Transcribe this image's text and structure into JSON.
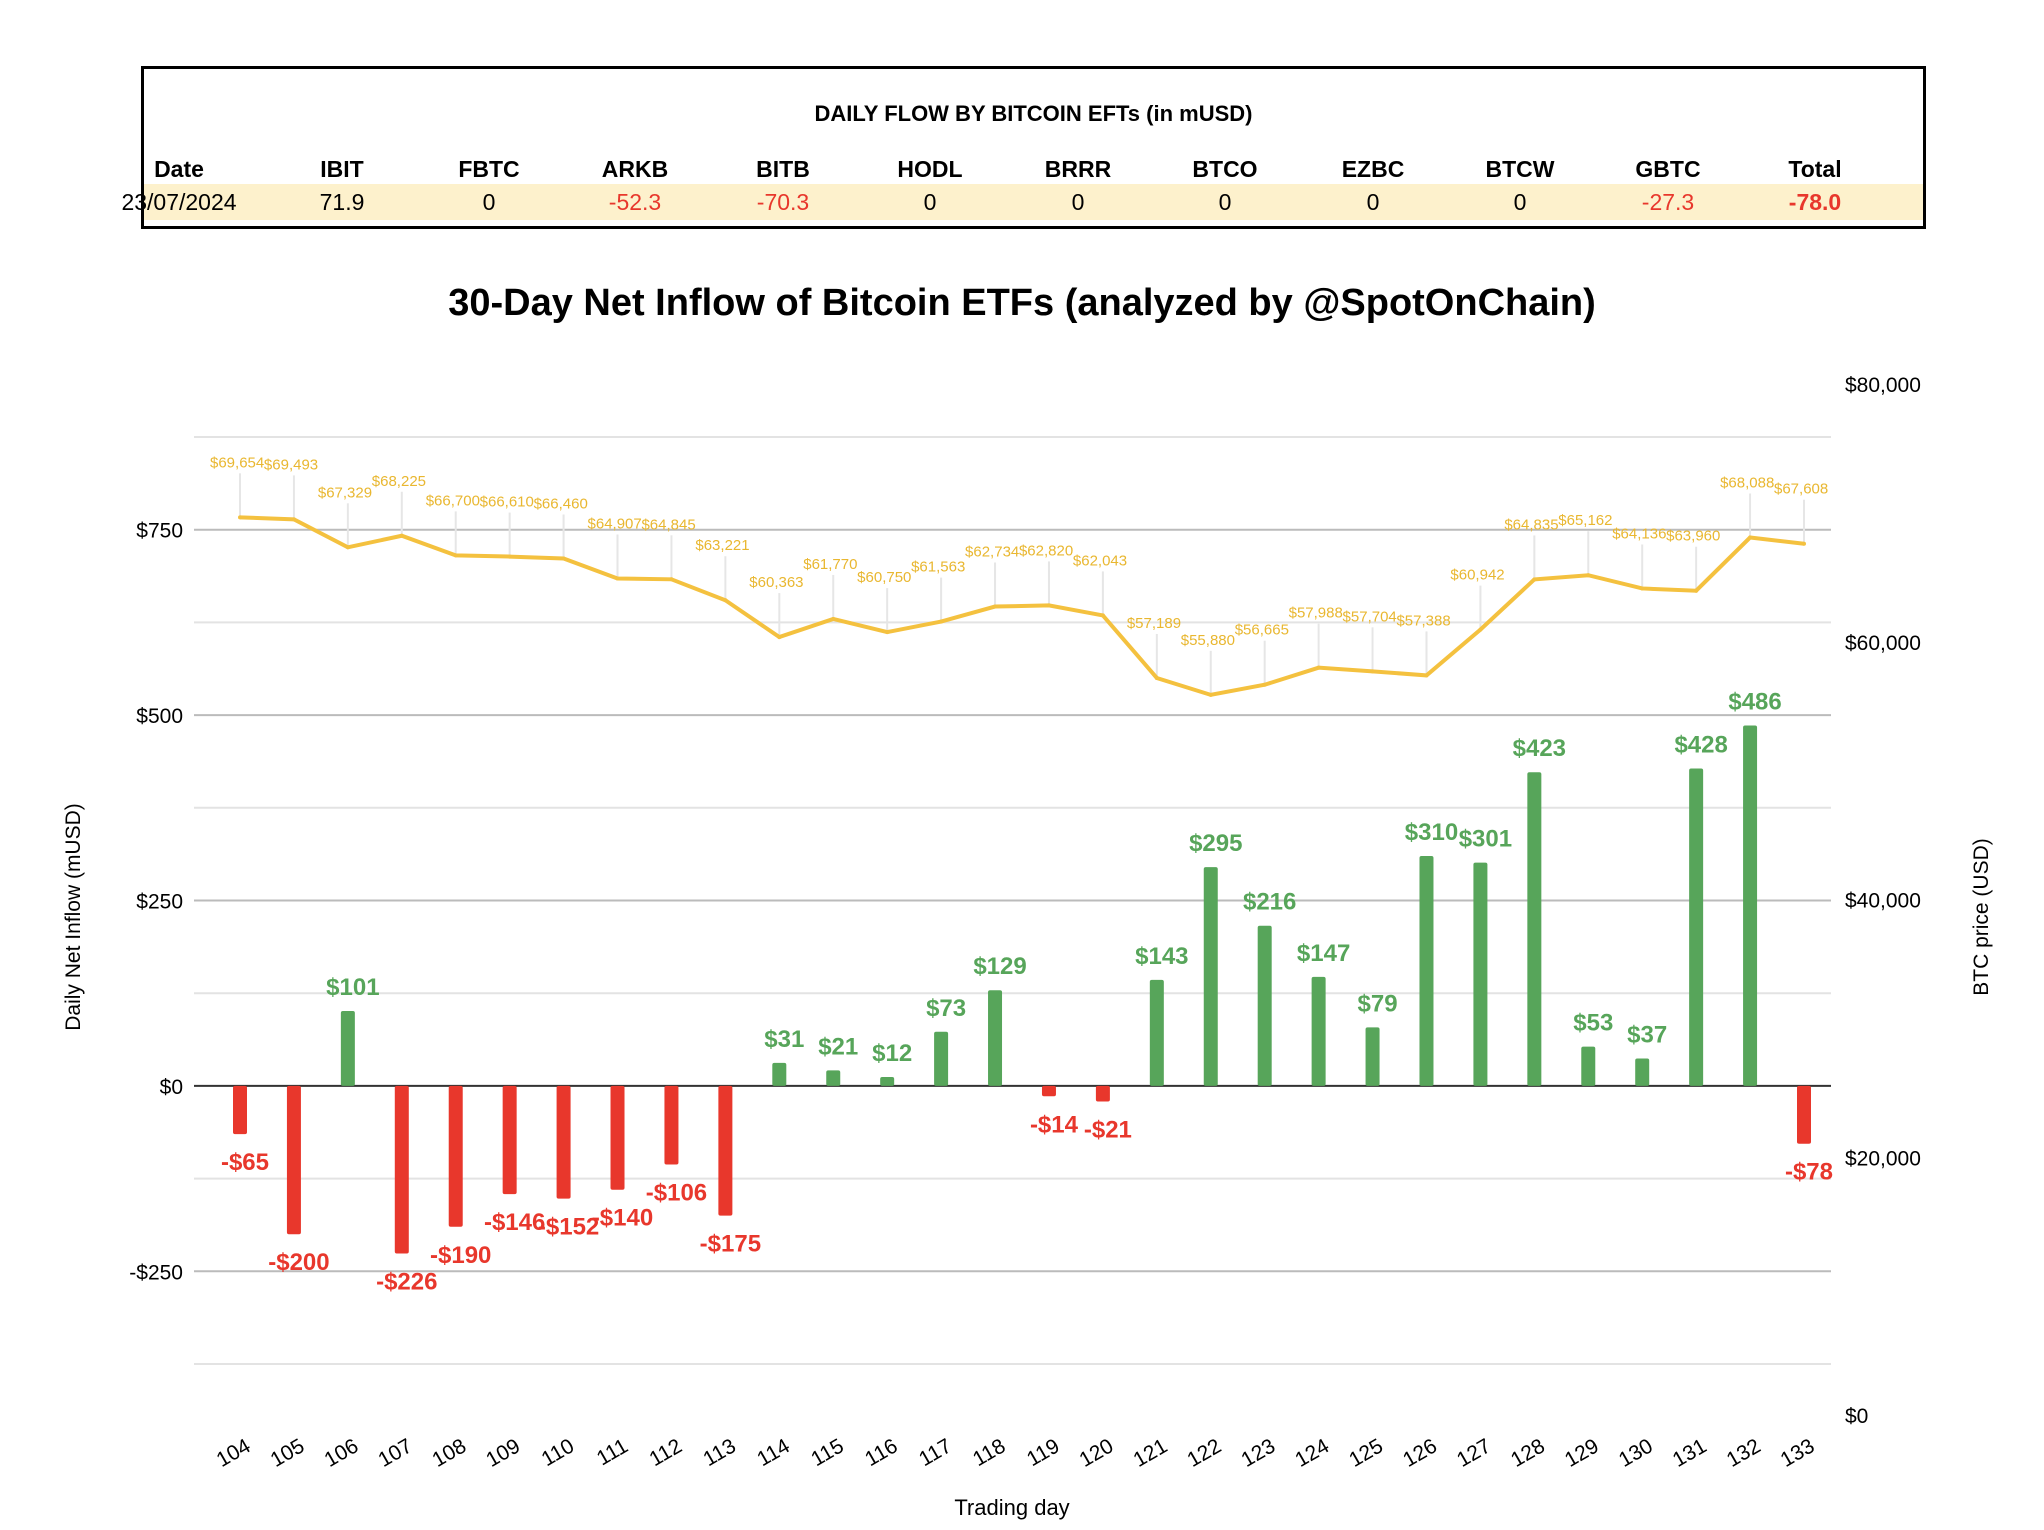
{
  "table": {
    "title": "DAILY FLOW BY BITCOIN EFTs (in mUSD)",
    "headers": [
      "Date",
      "IBIT",
      "FBTC",
      "ARKB",
      "BITB",
      "HODL",
      "BRRR",
      "BTCO",
      "EZBC",
      "BTCW",
      "GBTC",
      "Total"
    ],
    "row": [
      "23/07/2024",
      "71.9",
      "0",
      "-52.3",
      "-70.3",
      "0",
      "0",
      "0",
      "0",
      "0",
      "-27.3",
      "-78.0"
    ]
  },
  "chart_data": {
    "type": "bar+line",
    "title": "30-Day Net Inflow of Bitcoin ETFs (analyzed by @SpotOnChain)",
    "xlabel": "Trading day",
    "ylabel": "Daily Net Inflow (mUSD)",
    "y2label": "BTC price (USD)",
    "categories": [
      "104",
      "105",
      "106",
      "107",
      "108",
      "109",
      "110",
      "111",
      "112",
      "113",
      "114",
      "115",
      "116",
      "117",
      "118",
      "119",
      "120",
      "121",
      "122",
      "123",
      "124",
      "125",
      "126",
      "127",
      "128",
      "129",
      "130",
      "131",
      "132",
      "133"
    ],
    "series": [
      {
        "name": "Daily Net Inflow",
        "type": "bar",
        "axis": "left",
        "values": [
          -65,
          -200,
          101,
          -226,
          -190,
          -146,
          -152,
          -140,
          -106,
          -175,
          31,
          21,
          12,
          73,
          129,
          -14,
          -21,
          143,
          295,
          216,
          147,
          79,
          310,
          301,
          423,
          53,
          37,
          428,
          486,
          -78
        ]
      },
      {
        "name": "BTC price",
        "type": "line",
        "axis": "right",
        "values": [
          69654,
          69493,
          67329,
          68225,
          66700,
          66610,
          66460,
          64907,
          64845,
          63221,
          60363,
          61770,
          60750,
          61563,
          62734,
          62820,
          62043,
          57189,
          55880,
          56665,
          57988,
          57704,
          57388,
          60942,
          64835,
          65162,
          64136,
          63960,
          68088,
          67608
        ]
      }
    ],
    "ylim": [
      -375,
      875
    ],
    "yticks": [
      -250,
      0,
      250,
      500,
      750
    ],
    "ytick_labels": [
      "-$250",
      "$0",
      "$250",
      "$500",
      "$750"
    ],
    "y2lim": [
      0,
      80000
    ],
    "y2ticks": [
      0,
      20000,
      40000,
      60000,
      80000
    ],
    "y2tick_labels": [
      "$0",
      "$20,000",
      "$40,000",
      "$60,000",
      "$80,000"
    ],
    "grid": true,
    "colors": {
      "positive": "#57a55a",
      "negative": "#e8372c",
      "line": "#f4c13f"
    }
  }
}
